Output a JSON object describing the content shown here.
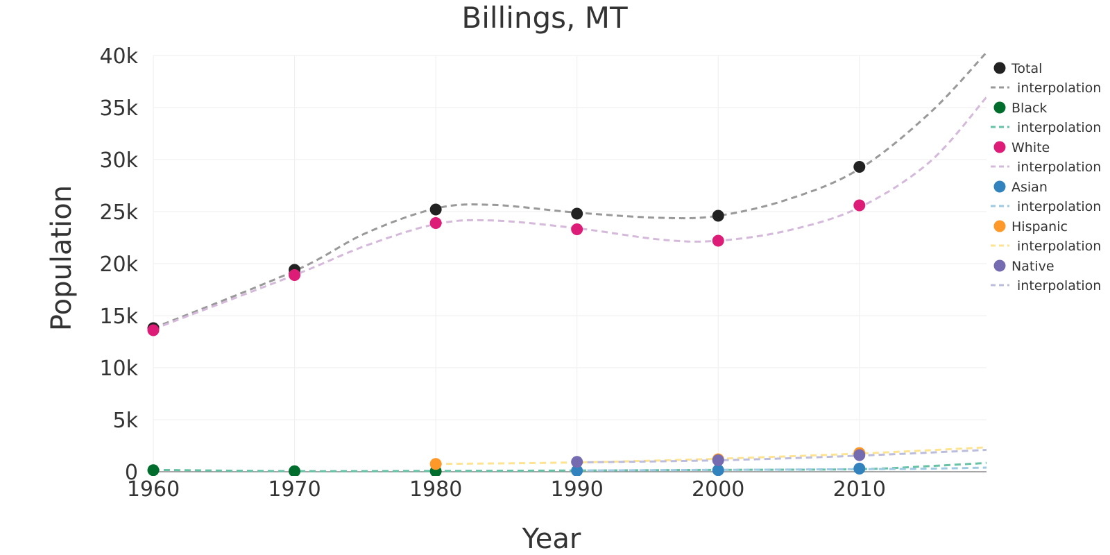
{
  "chart_data": {
    "type": "line",
    "title": "Billings, MT",
    "xlabel": "Year",
    "ylabel": "Population",
    "xlim": [
      1960,
      2019
    ],
    "ylim": [
      0,
      40000
    ],
    "x_ticks": [
      1960,
      1970,
      1980,
      1990,
      2000,
      2010
    ],
    "x_tick_labels": [
      "1960",
      "1970",
      "1980",
      "1990",
      "2000",
      "2010"
    ],
    "y_ticks": [
      0,
      5000,
      10000,
      15000,
      20000,
      25000,
      30000,
      35000,
      40000
    ],
    "y_tick_labels": [
      "0",
      "5k",
      "10k",
      "15k",
      "20k",
      "25k",
      "30k",
      "35k",
      "40k"
    ],
    "grid": true,
    "legend_position": "right",
    "interpolation_label": "interpolation",
    "series": [
      {
        "name": "Total",
        "color": "#222222",
        "interp_color": "#999999",
        "x": [
          1960,
          1970,
          1980,
          1990,
          2000,
          2010
        ],
        "values": [
          13800,
          19400,
          25200,
          24800,
          24600,
          29300
        ],
        "interp": [
          [
            1960,
            13800
          ],
          [
            1970,
            19300
          ],
          [
            1975,
            22900
          ],
          [
            1980,
            25300
          ],
          [
            1984,
            25650
          ],
          [
            1990,
            24900
          ],
          [
            1996,
            24400
          ],
          [
            2000,
            24600
          ],
          [
            2005,
            26200
          ],
          [
            2010,
            29100
          ],
          [
            2015,
            34500
          ],
          [
            2019,
            40300
          ]
        ]
      },
      {
        "name": "Black",
        "color": "#006d2c",
        "interp_color": "#66c2a4",
        "x": [
          1960,
          1970,
          1980
        ],
        "values": [
          150,
          50,
          50
        ],
        "interp": [
          [
            1960,
            180
          ],
          [
            1970,
            60
          ],
          [
            1980,
            80
          ],
          [
            1990,
            120
          ],
          [
            2000,
            180
          ],
          [
            2010,
            250
          ],
          [
            2015,
            550
          ],
          [
            2019,
            850
          ]
        ]
      },
      {
        "name": "White",
        "color": "#dd1c77",
        "interp_color": "#d4b9da",
        "x": [
          1960,
          1970,
          1980,
          1990,
          2000,
          2010
        ],
        "values": [
          13600,
          18900,
          23900,
          23300,
          22200,
          25600
        ],
        "interp": [
          [
            1960,
            13700
          ],
          [
            1970,
            18900
          ],
          [
            1975,
            21700
          ],
          [
            1980,
            23800
          ],
          [
            1984,
            24150
          ],
          [
            1990,
            23400
          ],
          [
            1996,
            22300
          ],
          [
            2000,
            22200
          ],
          [
            2005,
            23200
          ],
          [
            2010,
            25400
          ],
          [
            2015,
            29800
          ],
          [
            2019,
            36000
          ]
        ]
      },
      {
        "name": "Asian",
        "color": "#3182bd",
        "interp_color": "#9ecae1",
        "x": [
          1990,
          2000,
          2010
        ],
        "values": [
          100,
          150,
          300
        ],
        "interp": [
          [
            1990,
            120
          ],
          [
            2000,
            180
          ],
          [
            2010,
            250
          ],
          [
            2015,
            300
          ],
          [
            2019,
            400
          ]
        ]
      },
      {
        "name": "Hispanic",
        "color": "#fe9929",
        "interp_color": "#fee391",
        "x": [
          1980,
          2000,
          2010
        ],
        "values": [
          750,
          1200,
          1800
        ],
        "interp": [
          [
            1980,
            750
          ],
          [
            1990,
            900
          ],
          [
            2000,
            1250
          ],
          [
            2010,
            1750
          ],
          [
            2019,
            2350
          ]
        ]
      },
      {
        "name": "Native",
        "color": "#756bb1",
        "interp_color": "#bcbddc",
        "x": [
          1990,
          2000,
          2010
        ],
        "values": [
          950,
          1100,
          1600
        ],
        "interp": [
          [
            1990,
            900
          ],
          [
            2000,
            1100
          ],
          [
            2010,
            1550
          ],
          [
            2019,
            2100
          ]
        ]
      }
    ]
  }
}
